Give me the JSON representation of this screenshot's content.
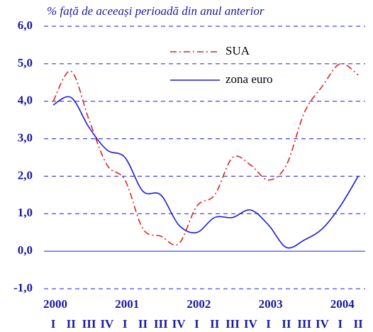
{
  "chart_data": {
    "type": "line",
    "title": "% față de aceeași perioadă din anul anterior",
    "categories": [
      "I",
      "II",
      "III",
      "IV",
      "I",
      "II",
      "III",
      "IV",
      "I",
      "II",
      "III",
      "IV",
      "I",
      "II",
      "III",
      "IV",
      "I",
      "II"
    ],
    "years": [
      "2000",
      "2001",
      "2002",
      "2003",
      "2004"
    ],
    "series": [
      {
        "name": "SUA",
        "color": "#e02020",
        "dash": "dash-dot",
        "values": [
          4.0,
          4.8,
          3.5,
          2.3,
          1.9,
          0.6,
          0.4,
          0.2,
          1.2,
          1.5,
          2.5,
          2.3,
          1.9,
          2.3,
          3.7,
          4.4,
          5.0,
          4.7
        ]
      },
      {
        "name": "zona euro",
        "color": "#1a1ae0",
        "dash": "solid",
        "values": [
          3.9,
          4.1,
          3.3,
          2.7,
          2.5,
          1.6,
          1.5,
          0.7,
          0.5,
          0.9,
          0.9,
          1.1,
          0.7,
          0.1,
          0.3,
          0.6,
          1.2,
          2.0
        ]
      }
    ],
    "ylim": [
      -1,
      6
    ],
    "yticks": [
      {
        "value": 6,
        "label": "6,0"
      },
      {
        "value": 5,
        "label": "5,0"
      },
      {
        "value": 4,
        "label": "4,0"
      },
      {
        "value": 3,
        "label": "3,0"
      },
      {
        "value": 2,
        "label": "2,0"
      },
      {
        "value": 1,
        "label": "1,0"
      },
      {
        "value": 0,
        "label": "0,0"
      },
      {
        "value": -1,
        "label": "-1,0"
      }
    ],
    "grid": true
  }
}
